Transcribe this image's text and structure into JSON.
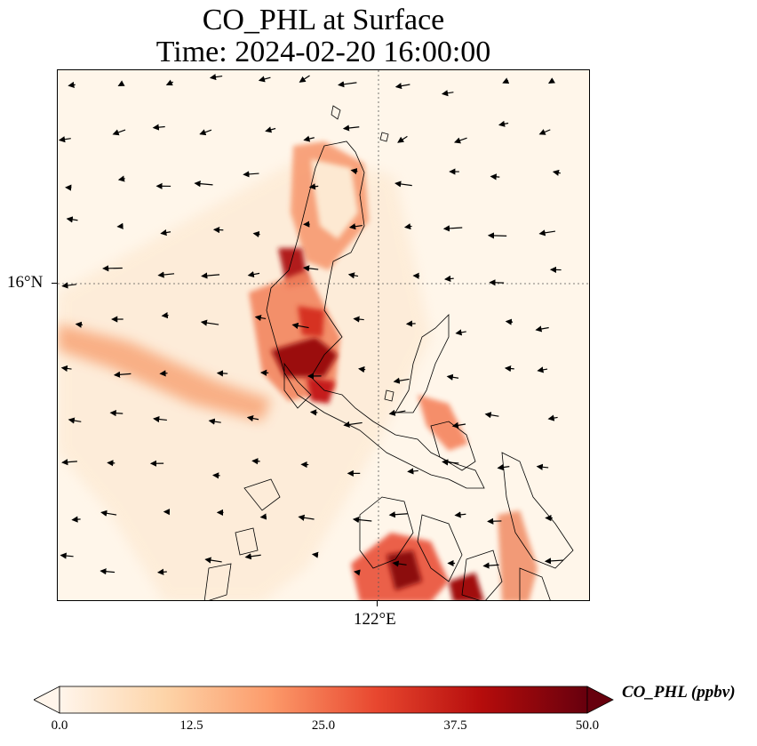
{
  "title": {
    "line1": "CO_PHL at Surface",
    "line2": "Time: 2024-02-20 16:00:00"
  },
  "map": {
    "variable": "CO_PHL",
    "units": "ppbv",
    "latitude_ticks": [
      "16°N"
    ],
    "longitude_ticks": [
      "122°E"
    ],
    "gridlines": "dotted",
    "features": [
      "coastlines",
      "wind-vectors",
      "concentration-field"
    ],
    "hotspots": [
      {
        "name": "north-luzon-west-coast",
        "level": 42
      },
      {
        "name": "central-luzon-plume",
        "level": 50
      },
      {
        "name": "western-offshore-plume",
        "level": 22
      },
      {
        "name": "bicol-region",
        "level": 30
      },
      {
        "name": "southern-visayas",
        "level": 48
      }
    ]
  },
  "colorbar": {
    "label": "CO_PHL (ppbv)",
    "min": 0.0,
    "max": 50.0,
    "extend": "both",
    "ticks": [
      "0.0",
      "12.5",
      "25.0",
      "37.5",
      "50.0"
    ],
    "colors": [
      "#fff5eb",
      "#fdd4a8",
      "#fc9a6a",
      "#e8472f",
      "#b50c0c",
      "#67000d"
    ]
  }
}
